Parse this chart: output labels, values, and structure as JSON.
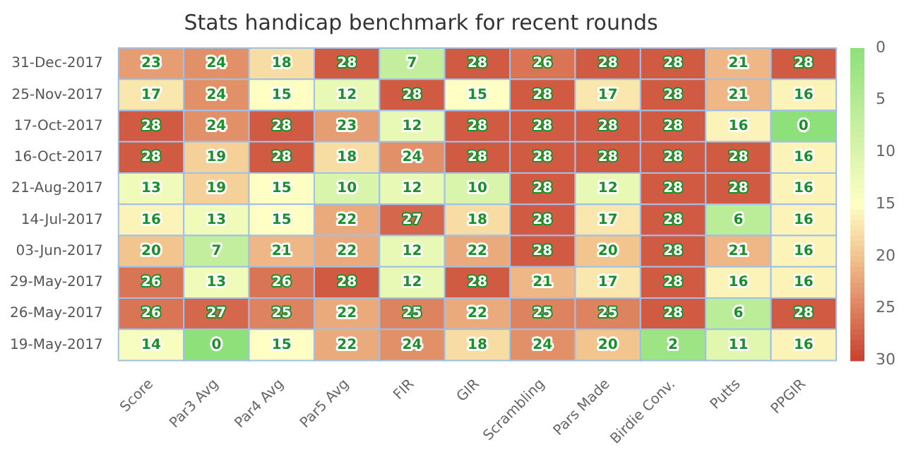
{
  "chart_data": {
    "type": "heatmap",
    "title": "Stats handicap benchmark for recent rounds",
    "categories": [
      "Score",
      "Par3 Avg",
      "Par4 Avg",
      "Par5 Avg",
      "FIR",
      "GIR",
      "Scrambling",
      "Pars Made",
      "Birdie Conv.",
      "Putts",
      "PPGIR"
    ],
    "y_categories": [
      "31-Dec-2017",
      "25-Nov-2017",
      "17-Oct-2017",
      "16-Oct-2017",
      "21-Aug-2017",
      "14-Jul-2017",
      "03-Jun-2017",
      "29-May-2017",
      "26-May-2017",
      "19-May-2017"
    ],
    "cells": [
      [
        23,
        24,
        18,
        28,
        7,
        28,
        26,
        28,
        28,
        21,
        28
      ],
      [
        17,
        24,
        15,
        12,
        28,
        15,
        28,
        17,
        28,
        21,
        16
      ],
      [
        28,
        24,
        28,
        23,
        12,
        28,
        28,
        28,
        28,
        16,
        0
      ],
      [
        28,
        19,
        28,
        18,
        24,
        28,
        28,
        28,
        28,
        28,
        16
      ],
      [
        13,
        19,
        15,
        10,
        12,
        10,
        28,
        12,
        28,
        28,
        16
      ],
      [
        16,
        13,
        15,
        22,
        27,
        18,
        28,
        17,
        28,
        6,
        16
      ],
      [
        20,
        7,
        21,
        22,
        12,
        22,
        28,
        20,
        28,
        21,
        16
      ],
      [
        26,
        13,
        26,
        28,
        12,
        28,
        21,
        17,
        28,
        16,
        16
      ],
      [
        26,
        27,
        25,
        22,
        25,
        22,
        25,
        25,
        28,
        6,
        28
      ],
      [
        14,
        0,
        15,
        22,
        24,
        18,
        24,
        20,
        2,
        11,
        16
      ]
    ],
    "clim": [
      0,
      30
    ],
    "cticks": [
      0,
      5,
      10,
      15,
      20,
      25,
      30
    ],
    "data_labels": true
  }
}
